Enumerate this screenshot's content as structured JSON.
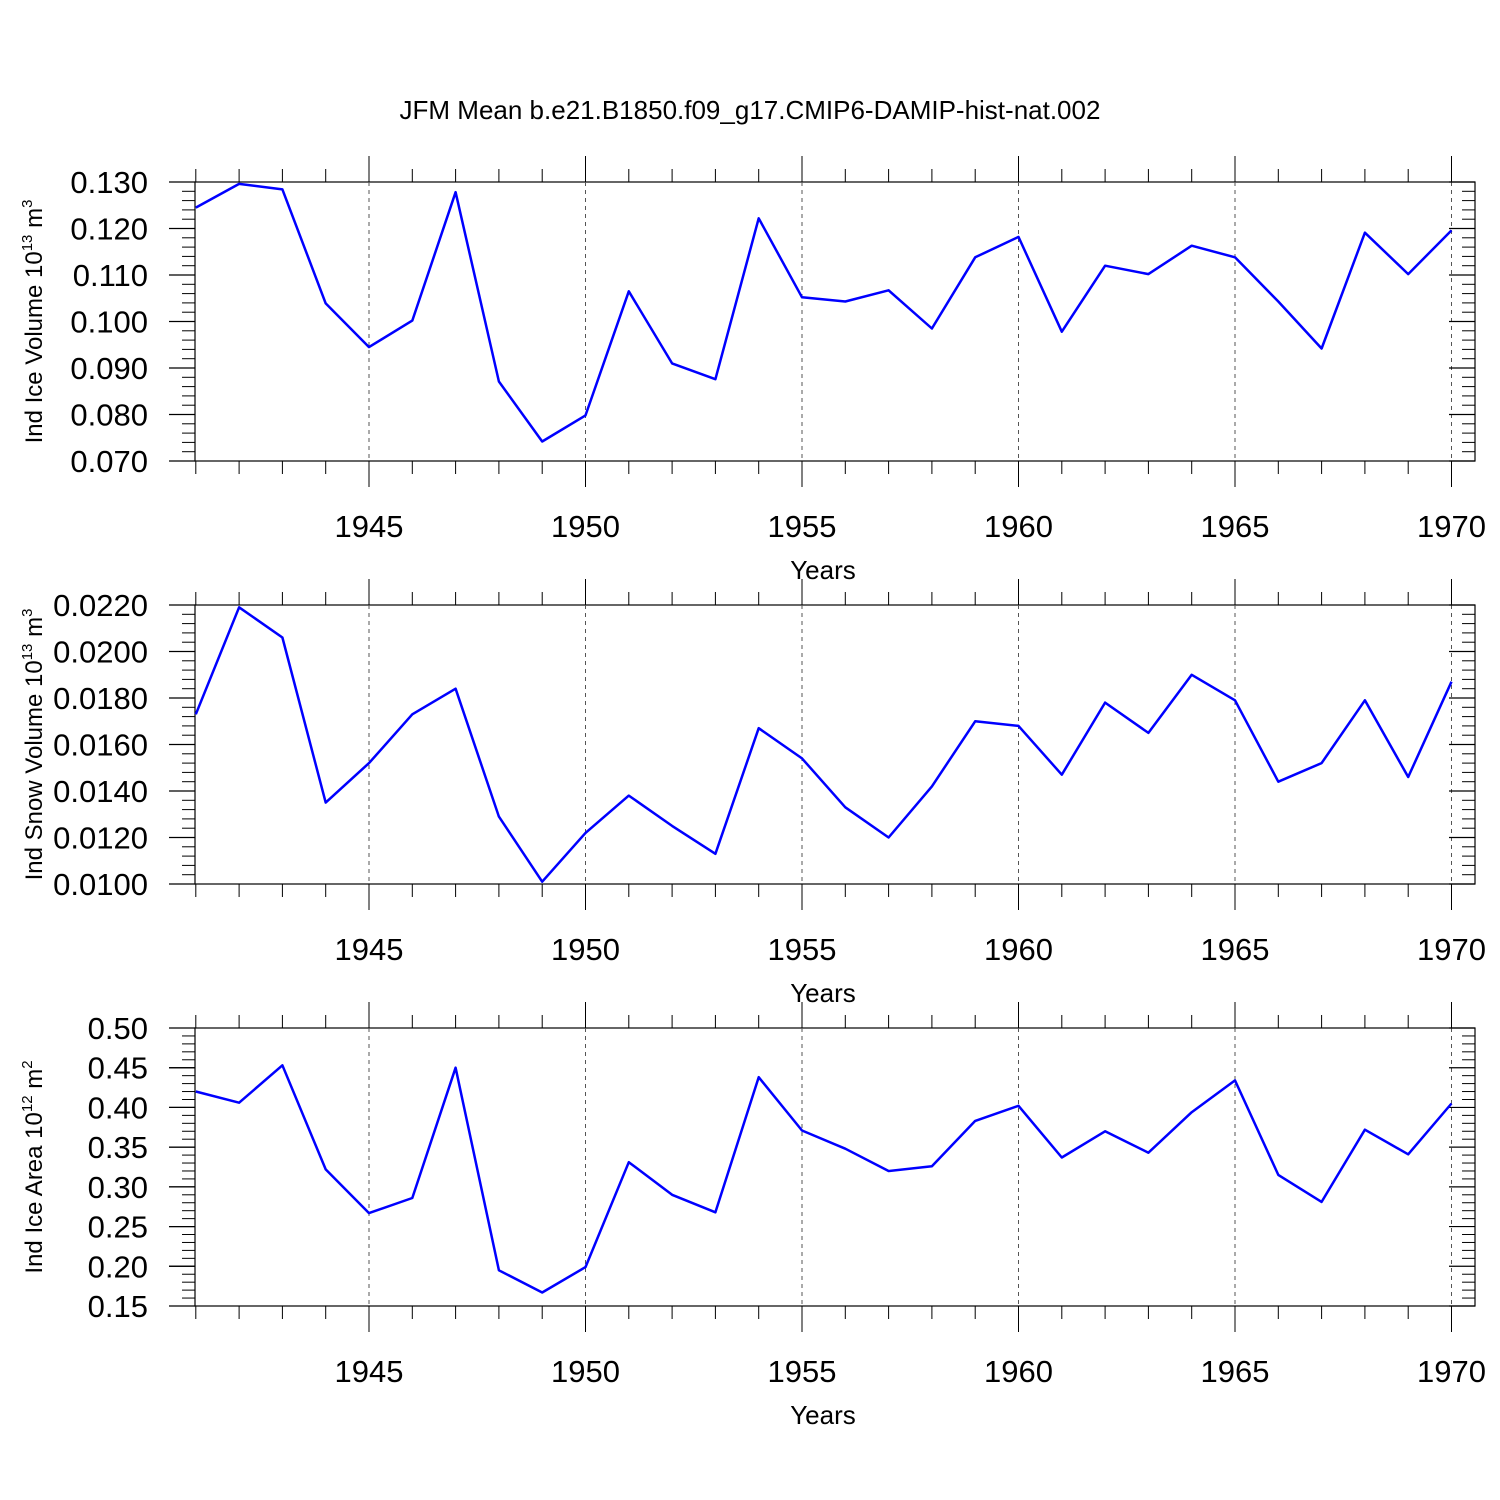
{
  "title": "JFM Mean b.e21.B1850.f09_g17.CMIP6-DAMIP-hist-nat.002",
  "line_color": "#0000ff",
  "chart_data": [
    {
      "type": "line",
      "ylabel": "Ind Ice Volume 10",
      "ylabel_exp": "13",
      "ylabel_unit": " m",
      "ylabel_unit_exp": "3",
      "xlabel": "Years",
      "xlim": [
        1941,
        1970
      ],
      "ylim": [
        0.07,
        0.13
      ],
      "yticks": [
        0.07,
        0.08,
        0.09,
        0.1,
        0.11,
        0.12,
        0.13
      ],
      "ytick_labels": [
        "0.070",
        "0.080",
        "0.090",
        "0.100",
        "0.110",
        "0.120",
        "0.130"
      ],
      "xticks": [
        1945,
        1950,
        1955,
        1960,
        1965,
        1970
      ],
      "xtick_labels": [
        "1945",
        "1950",
        "1955",
        "1960",
        "1965",
        "1970"
      ],
      "x": [
        1941,
        1942,
        1943,
        1944,
        1945,
        1946,
        1947,
        1948,
        1949,
        1950,
        1951,
        1952,
        1953,
        1954,
        1955,
        1956,
        1957,
        1958,
        1959,
        1960,
        1961,
        1962,
        1963,
        1964,
        1965,
        1966,
        1967,
        1968,
        1969,
        1970
      ],
      "series": [
        {
          "name": "Ind Ice Volume",
          "values": [
            0.1245,
            0.1296,
            0.1284,
            0.1039,
            0.0945,
            0.1002,
            0.1278,
            0.0871,
            0.0742,
            0.0798,
            0.1065,
            0.091,
            0.0876,
            0.1222,
            0.1052,
            0.1043,
            0.1067,
            0.0985,
            0.1138,
            0.1182,
            0.0978,
            0.112,
            0.1102,
            0.1163,
            0.1138,
            0.1043,
            0.0942,
            0.1191,
            0.1102,
            0.1196
          ]
        }
      ]
    },
    {
      "type": "line",
      "ylabel": "Ind Snow Volume 10",
      "ylabel_exp": "13",
      "ylabel_unit": " m",
      "ylabel_unit_exp": "3",
      "xlabel": "Years",
      "xlim": [
        1941,
        1970
      ],
      "ylim": [
        0.01,
        0.022
      ],
      "yticks": [
        0.01,
        0.012,
        0.014,
        0.016,
        0.018,
        0.02,
        0.022
      ],
      "ytick_labels": [
        "0.0100",
        "0.0120",
        "0.0140",
        "0.0160",
        "0.0180",
        "0.0200",
        "0.0220"
      ],
      "xticks": [
        1945,
        1950,
        1955,
        1960,
        1965,
        1970
      ],
      "xtick_labels": [
        "1945",
        "1950",
        "1955",
        "1960",
        "1965",
        "1970"
      ],
      "x": [
        1941,
        1942,
        1943,
        1944,
        1945,
        1946,
        1947,
        1948,
        1949,
        1950,
        1951,
        1952,
        1953,
        1954,
        1955,
        1956,
        1957,
        1958,
        1959,
        1960,
        1961,
        1962,
        1963,
        1964,
        1965,
        1966,
        1967,
        1968,
        1969,
        1970
      ],
      "series": [
        {
          "name": "Ind Snow Volume",
          "values": [
            0.0173,
            0.0219,
            0.0206,
            0.0135,
            0.0152,
            0.0173,
            0.0184,
            0.0129,
            0.0101,
            0.0122,
            0.0138,
            0.0125,
            0.0113,
            0.0167,
            0.0154,
            0.0133,
            0.012,
            0.0142,
            0.017,
            0.0168,
            0.0147,
            0.0178,
            0.0165,
            0.019,
            0.0179,
            0.0144,
            0.0152,
            0.0179,
            0.0146,
            0.0187
          ]
        }
      ]
    },
    {
      "type": "line",
      "ylabel": "Ind Ice Area 10",
      "ylabel_exp": "12",
      "ylabel_unit": " m",
      "ylabel_unit_exp": "2",
      "xlabel": "Years",
      "xlim": [
        1941,
        1970
      ],
      "ylim": [
        0.15,
        0.5
      ],
      "yticks": [
        0.15,
        0.2,
        0.25,
        0.3,
        0.35,
        0.4,
        0.45,
        0.5
      ],
      "ytick_labels": [
        "0.15",
        "0.20",
        "0.25",
        "0.30",
        "0.35",
        "0.40",
        "0.45",
        "0.50"
      ],
      "xticks": [
        1945,
        1950,
        1955,
        1960,
        1965,
        1970
      ],
      "xtick_labels": [
        "1945",
        "1950",
        "1955",
        "1960",
        "1965",
        "1970"
      ],
      "x": [
        1941,
        1942,
        1943,
        1944,
        1945,
        1946,
        1947,
        1948,
        1949,
        1950,
        1951,
        1952,
        1953,
        1954,
        1955,
        1956,
        1957,
        1958,
        1959,
        1960,
        1961,
        1962,
        1963,
        1964,
        1965,
        1966,
        1967,
        1968,
        1969,
        1970
      ],
      "series": [
        {
          "name": "Ind Ice Area",
          "values": [
            0.42,
            0.406,
            0.453,
            0.322,
            0.267,
            0.286,
            0.45,
            0.195,
            0.167,
            0.199,
            0.331,
            0.29,
            0.268,
            0.438,
            0.371,
            0.348,
            0.32,
            0.326,
            0.383,
            0.402,
            0.337,
            0.37,
            0.343,
            0.394,
            0.434,
            0.315,
            0.281,
            0.372,
            0.341,
            0.405
          ]
        }
      ]
    }
  ]
}
